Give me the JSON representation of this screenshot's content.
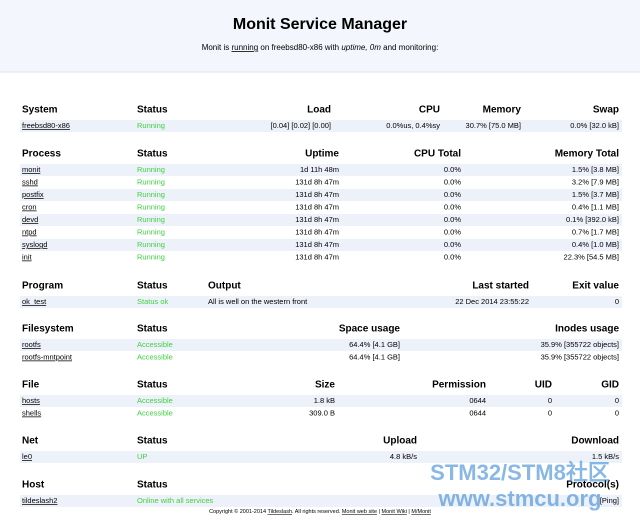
{
  "header": {
    "title": "Monit Service Manager",
    "subtitle": [
      "Monit is ",
      "running",
      " on freebsd80-x86 with ",
      "uptime, 0m",
      " and monitoring:"
    ]
  },
  "sections": [
    {
      "headers": [
        "System",
        "Status",
        "Load",
        "CPU",
        "Memory",
        "Swap"
      ],
      "rows": [
        [
          "freebsd80-x86",
          "Running",
          "[0.04] [0.02] [0.00]",
          "0.0%us, 0.4%sy",
          "30.7% [75.0 MB]",
          "0.0% [32.0 kB]"
        ]
      ]
    },
    {
      "headers": [
        "Process",
        "Status",
        "Uptime",
        "CPU Total",
        "Memory Total"
      ],
      "rows": [
        [
          "monit",
          "Running",
          "1d 11h 48m",
          "0.0%",
          "1.5% [3.8 MB]"
        ],
        [
          "sshd",
          "Running",
          "131d 8h 47m",
          "0.0%",
          "3.2% [7.9 MB]"
        ],
        [
          "postfix",
          "Running",
          "131d 8h 47m",
          "0.0%",
          "1.5% [3.7 MB]"
        ],
        [
          "cron",
          "Running",
          "131d 8h 47m",
          "0.0%",
          "0.4% [1.1 MB]"
        ],
        [
          "devd",
          "Running",
          "131d 8h 47m",
          "0.0%",
          "0.1% [392.0 kB]"
        ],
        [
          "ntpd",
          "Running",
          "131d 8h 47m",
          "0.0%",
          "0.7% [1.7 MB]"
        ],
        [
          "syslogd",
          "Running",
          "131d 8h 47m",
          "0.0%",
          "0.4% [1.0 MB]"
        ],
        [
          "init",
          "Running",
          "131d 8h 47m",
          "0.0%",
          "22.3% [54.5 MB]"
        ]
      ]
    },
    {
      "headers": [
        "Program",
        "Status",
        "Output",
        "Last started",
        "Exit value"
      ],
      "rows": [
        [
          "ok_test",
          "Status ok",
          "All is well on the western front",
          "22 Dec 2014 23:55:22",
          "0"
        ]
      ]
    },
    {
      "headers": [
        "Filesystem",
        "Status",
        "Space usage",
        "Inodes usage"
      ],
      "rows": [
        [
          "rootfs",
          "Accessible",
          "64.4% [4.1 GB]",
          "35.9% [355722 objects]"
        ],
        [
          "rootfs-mntpoint",
          "Accessible",
          "64.4% [4.1 GB]",
          "35.9% [355722 objects]"
        ]
      ]
    },
    {
      "headers": [
        "File",
        "Status",
        "Size",
        "Permission",
        "UID",
        "GID"
      ],
      "rows": [
        [
          "hosts",
          "Accessible",
          "1.8 kB",
          "0644",
          "0",
          "0"
        ],
        [
          "shells",
          "Accessible",
          "309.0 B",
          "0644",
          "0",
          "0"
        ]
      ]
    },
    {
      "headers": [
        "Net",
        "Status",
        "Upload",
        "Download"
      ],
      "rows": [
        [
          "le0",
          "UP",
          "4.8 kB/s",
          "1.5 kB/s"
        ]
      ]
    },
    {
      "headers": [
        "Host",
        "Status",
        "Protocol(s)"
      ],
      "rows": [
        [
          "tildeslash2",
          "Online with all services",
          "[Ping]"
        ]
      ]
    }
  ],
  "footer": [
    "Copyright © 2001-2014 ",
    "Tildeslash",
    ". All rights reserved. ",
    "Monit web site",
    " | ",
    "Monit Wiki",
    " | ",
    "M/Monit"
  ],
  "watermark": [
    "STM32/STM8社区",
    "www.stmcu.org"
  ]
}
